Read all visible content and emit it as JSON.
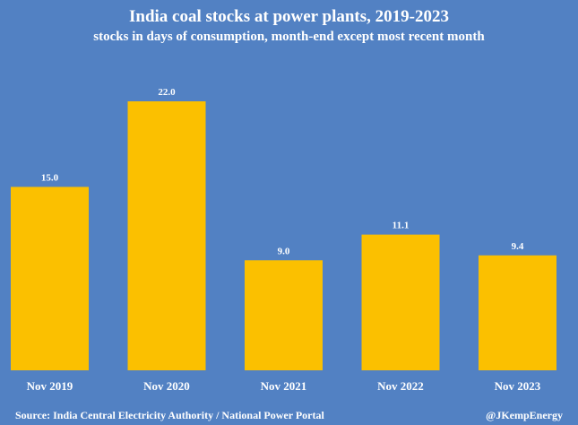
{
  "chart_data": {
    "type": "bar",
    "title": "India coal stocks at power plants, 2019-2023",
    "subtitle": "stocks in days of consumption, month-end except most recent month",
    "categories": [
      "Nov 2019",
      "Nov 2020",
      "Nov 2021",
      "Nov 2022",
      "Nov 2023"
    ],
    "values": [
      15.0,
      22.0,
      9.0,
      11.1,
      9.4
    ],
    "value_labels": [
      "15.0",
      "22.0",
      "9.0",
      "11.1",
      "9.4"
    ],
    "ylim": [
      0,
      22
    ],
    "xlabel": "",
    "ylabel": "",
    "bar_color": "#fbc000",
    "background_color": "#5281c3",
    "grid": false
  },
  "footer": {
    "source": "Source: India Central Electricity Authority / National Power Portal",
    "handle": "@JKempEnergy"
  }
}
